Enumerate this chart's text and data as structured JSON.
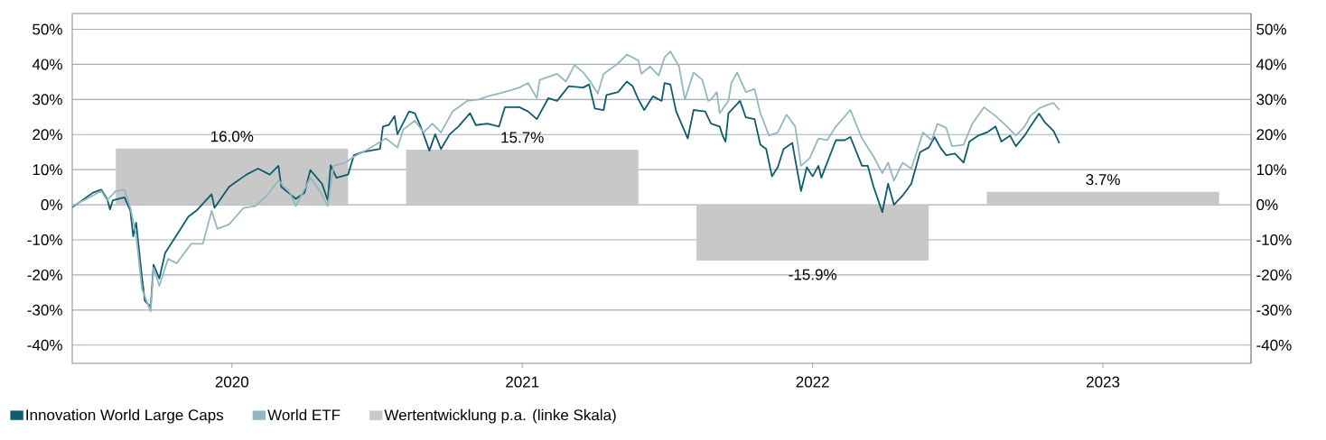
{
  "chart_data": {
    "type": "line",
    "xlim": [
      2019.45,
      2023.51
    ],
    "xticks": [
      2020,
      2021,
      2022,
      2023
    ],
    "ylim": [
      -45.2,
      54.5
    ],
    "yticks": [
      {
        "value": -40,
        "label": "-40%"
      },
      {
        "value": -30,
        "label": "-30%"
      },
      {
        "value": -20,
        "label": "-20%"
      },
      {
        "value": -10,
        "label": "-10%"
      },
      {
        "value": 0,
        "label": "0%"
      },
      {
        "value": 10,
        "label": "10%"
      },
      {
        "value": 20,
        "label": "20%"
      },
      {
        "value": 30,
        "label": "30%"
      },
      {
        "value": 40,
        "label": "40%"
      },
      {
        "value": 50,
        "label": "50%"
      }
    ],
    "y2lim": [
      -45.2,
      54.5
    ],
    "y2ticks": [
      {
        "value": -40,
        "label": "-40%"
      },
      {
        "value": -30,
        "label": "-30%"
      },
      {
        "value": -20,
        "label": "-20%"
      },
      {
        "value": -10,
        "label": "-10%"
      },
      {
        "value": 0,
        "label": "0%"
      },
      {
        "value": 10,
        "label": "10%"
      },
      {
        "value": 20,
        "label": "20%"
      },
      {
        "value": 30,
        "label": "30%"
      },
      {
        "value": 40,
        "label": "40%"
      },
      {
        "value": 50,
        "label": "50%"
      }
    ],
    "grid": "y",
    "legend": "bottom",
    "marker": "none",
    "line_style": "solid",
    "series": [
      {
        "name": "Innovation World Large Caps",
        "color": "#0d5c6b",
        "x": [
          2019.45,
          2019.48,
          2019.52,
          2019.55,
          2019.57,
          2019.58,
          2019.59,
          2019.63,
          2019.65,
          2019.66,
          2019.67,
          2019.69,
          2019.7,
          2019.72,
          2019.73,
          2019.75,
          2019.77,
          2019.81,
          2019.85,
          2019.88,
          2019.93,
          2019.94,
          2019.99,
          2020.05,
          2020.09,
          2020.13,
          2020.16,
          2020.17,
          2020.22,
          2020.25,
          2020.27,
          2020.31,
          2020.33,
          2020.34,
          2020.36,
          2020.4,
          2020.42,
          2020.45,
          2020.51,
          2020.52,
          2020.54,
          2020.56,
          2020.57,
          2020.61,
          2020.63,
          2020.65,
          2020.68,
          2020.7,
          2020.72,
          2020.75,
          2020.78,
          2020.82,
          2020.84,
          2020.88,
          2020.92,
          2020.94,
          2020.99,
          2021.02,
          2021.05,
          2021.09,
          2021.12,
          2021.16,
          2021.21,
          2021.23,
          2021.25,
          2021.28,
          2021.29,
          2021.33,
          2021.36,
          2021.38,
          2021.4,
          2021.42,
          2021.45,
          2021.48,
          2021.49,
          2021.51,
          2021.53,
          2021.57,
          2021.59,
          2021.63,
          2021.65,
          2021.68,
          2021.69,
          2021.7,
          2021.71,
          2021.75,
          2021.77,
          2021.8,
          2021.82,
          2021.84,
          2021.86,
          2021.88,
          2021.9,
          2021.93,
          2021.94,
          2021.96,
          2021.98,
          2022.0,
          2022.02,
          2022.03,
          2022.08,
          2022.11,
          2022.13,
          2022.17,
          2022.19,
          2022.21,
          2022.24,
          2022.26,
          2022.28,
          2022.31,
          2022.34,
          2022.37,
          2022.4,
          2022.42,
          2022.44,
          2022.46,
          2022.49,
          2022.52,
          2022.54,
          2022.57,
          2022.6,
          2022.63,
          2022.65,
          2022.68,
          2022.7,
          2022.73,
          2022.75,
          2022.78,
          2022.8,
          2022.83,
          2022.85
        ],
        "values": [
          -0.7,
          1.0,
          3.4,
          4.3,
          1.7,
          -1.3,
          1.3,
          2.1,
          -1.7,
          -9.0,
          -5.1,
          -20.6,
          -27.4,
          -29.1,
          -17.1,
          -21.0,
          -13.7,
          -8.6,
          -3.4,
          -1.5,
          3.0,
          -0.9,
          5.1,
          8.6,
          10.3,
          8.6,
          11.1,
          5.1,
          1.7,
          3.4,
          9.9,
          6.0,
          1.3,
          11.3,
          7.7,
          8.6,
          14.1,
          15.0,
          15.9,
          22.3,
          22.7,
          25.3,
          20.1,
          26.6,
          26.1,
          22.3,
          15.4,
          20.1,
          15.9,
          20.1,
          22.3,
          26.1,
          22.7,
          23.1,
          22.3,
          27.8,
          27.8,
          26.6,
          24.4,
          30.4,
          29.6,
          33.8,
          33.4,
          34.3,
          27.4,
          27.0,
          31.3,
          32.1,
          35.1,
          33.8,
          30.0,
          27.0,
          30.9,
          29.6,
          34.7,
          34.3,
          26.6,
          18.9,
          27.0,
          26.6,
          23.1,
          22.3,
          19.7,
          18.0,
          26.1,
          29.6,
          24.9,
          24.4,
          17.1,
          15.9,
          8.1,
          10.7,
          15.9,
          17.6,
          12.9,
          3.9,
          10.7,
          8.1,
          11.1,
          7.7,
          18.4,
          18.4,
          19.3,
          11.1,
          11.1,
          5.1,
          -2.1,
          6.0,
          0.0,
          2.6,
          6.0,
          15.0,
          16.3,
          19.3,
          16.3,
          14.1,
          14.6,
          12.0,
          18.0,
          19.7,
          20.6,
          22.3,
          18.0,
          19.7,
          16.7,
          19.7,
          22.3,
          26.0,
          23.5,
          21.0,
          17.5
        ]
      },
      {
        "name": "World ETF",
        "color": "#93b8bf",
        "x": [
          2019.45,
          2019.5,
          2019.55,
          2019.57,
          2019.6,
          2019.63,
          2019.65,
          2019.67,
          2019.69,
          2019.72,
          2019.73,
          2019.75,
          2019.78,
          2019.81,
          2019.86,
          2019.9,
          2019.93,
          2019.95,
          2019.99,
          2020.04,
          2020.08,
          2020.12,
          2020.16,
          2020.2,
          2020.22,
          2020.27,
          2020.3,
          2020.33,
          2020.35,
          2020.39,
          2020.42,
          2020.47,
          2020.53,
          2020.57,
          2020.59,
          2020.63,
          2020.66,
          2020.69,
          2020.72,
          2020.76,
          2020.81,
          2020.85,
          2020.88,
          2020.92,
          2020.96,
          2020.99,
          2021.02,
          2021.05,
          2021.06,
          2021.12,
          2021.15,
          2021.18,
          2021.21,
          2021.23,
          2021.26,
          2021.28,
          2021.33,
          2021.36,
          2021.4,
          2021.41,
          2021.44,
          2021.47,
          2021.49,
          2021.51,
          2021.54,
          2021.56,
          2021.59,
          2021.62,
          2021.64,
          2021.65,
          2021.67,
          2021.68,
          2021.71,
          2021.72,
          2021.74,
          2021.77,
          2021.8,
          2021.82,
          2021.85,
          2021.88,
          2021.91,
          2021.94,
          2021.96,
          2021.99,
          2022.02,
          2022.05,
          2022.08,
          2022.13,
          2022.17,
          2022.21,
          2022.24,
          2022.26,
          2022.28,
          2022.31,
          2022.34,
          2022.38,
          2022.41,
          2022.43,
          2022.46,
          2022.48,
          2022.52,
          2022.55,
          2022.59,
          2022.63,
          2022.67,
          2022.7,
          2022.73,
          2022.75,
          2022.78,
          2022.81,
          2022.83,
          2022.85
        ],
        "values": [
          -0.4,
          1.7,
          3.9,
          1.3,
          3.9,
          4.3,
          -0.9,
          -8.6,
          -24.0,
          -30.4,
          -18.0,
          -23.1,
          -15.4,
          -16.7,
          -11.1,
          -11.1,
          -1.7,
          -6.9,
          -5.6,
          -0.9,
          -0.4,
          2.6,
          6.9,
          3.4,
          -0.4,
          7.7,
          4.3,
          -0.4,
          11.1,
          12.0,
          13.7,
          15.9,
          18.9,
          16.3,
          21.4,
          24.0,
          20.6,
          23.1,
          20.6,
          26.6,
          29.6,
          30.0,
          30.9,
          31.7,
          32.6,
          33.4,
          34.7,
          30.4,
          35.6,
          37.3,
          35.1,
          39.8,
          37.7,
          35.6,
          31.7,
          37.3,
          40.3,
          42.8,
          41.1,
          37.3,
          39.4,
          36.8,
          42.0,
          43.7,
          39.4,
          30.0,
          37.7,
          35.6,
          29.6,
          30.0,
          32.1,
          26.1,
          29.6,
          34.7,
          37.7,
          32.1,
          33.0,
          26.1,
          19.7,
          20.6,
          25.7,
          22.3,
          11.1,
          13.3,
          18.9,
          18.4,
          22.3,
          27.0,
          18.9,
          13.7,
          9.0,
          12.0,
          6.9,
          12.0,
          10.3,
          20.6,
          18.4,
          23.1,
          21.9,
          16.7,
          17.1,
          23.1,
          27.8,
          25.3,
          22.3,
          19.7,
          22.3,
          25.3,
          27.5,
          28.5,
          29.0,
          27.0
        ]
      },
      {
        "name": "Wertentwicklung p.a. (linke Skala)",
        "type": "bar",
        "color": "#c8c8c8",
        "x": [
          2020,
          2021,
          2022,
          2023
        ],
        "values": [
          16.0,
          15.7,
          -15.9,
          3.7
        ],
        "value_labels": [
          "16.0%",
          "15.7%",
          "-15.9%",
          "3.7%"
        ]
      }
    ]
  }
}
